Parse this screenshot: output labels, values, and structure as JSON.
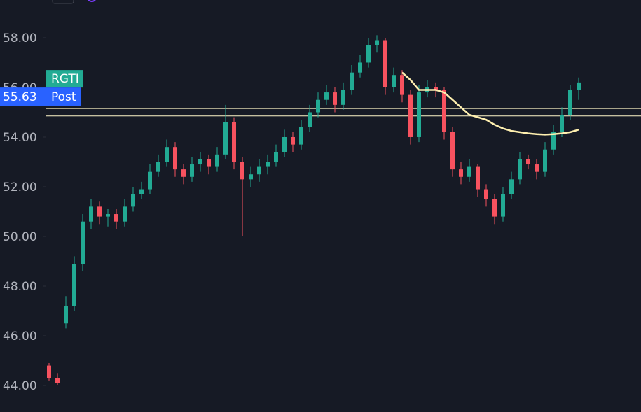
{
  "chart_data": {
    "type": "candlestick",
    "symbol": "RGTI",
    "last_price": 55.63,
    "session_label": "Post",
    "ylim": [
      42.93,
      59.52
    ],
    "yticks": [
      {
        "value": 44,
        "label": "44.00"
      },
      {
        "value": 46,
        "label": "46.00"
      },
      {
        "value": 48,
        "label": "48.00"
      },
      {
        "value": 50,
        "label": "50.00"
      },
      {
        "value": 52,
        "label": "52.00"
      },
      {
        "value": 54,
        "label": "54.00"
      },
      {
        "value": 56,
        "label": "56.00"
      },
      {
        "value": 58,
        "label": "58.00"
      }
    ],
    "up_color": "#22ab94",
    "down_color": "#f7525f",
    "hlines": [
      55.15,
      54.85
    ],
    "hline_color": "#fff6c8",
    "candles": {
      "open": [
        44.8,
        44.3,
        46.5,
        47.2,
        48.9,
        50.6,
        51.2,
        50.8,
        50.9,
        50.6,
        51.2,
        51.7,
        51.9,
        52.6,
        53.0,
        53.6,
        52.7,
        52.4,
        52.9,
        53.1,
        52.8,
        53.3,
        54.6,
        53.0,
        52.3,
        52.5,
        52.8,
        53.0,
        53.4,
        54.0,
        53.7,
        54.4,
        55.0,
        55.5,
        55.8,
        55.3,
        55.9,
        56.6,
        57.0,
        57.7,
        57.9,
        56.0,
        56.5,
        55.7,
        54.0,
        55.8,
        56.0,
        55.9,
        54.2,
        52.7,
        52.4,
        52.8,
        51.9,
        51.5,
        50.8,
        51.7,
        52.3,
        53.1,
        52.9,
        52.6,
        53.5,
        54.2,
        54.9,
        55.9
      ],
      "high": [
        44.9,
        44.5,
        47.6,
        49.2,
        50.9,
        51.5,
        51.4,
        51.1,
        51.1,
        51.5,
        52.0,
        52.2,
        52.9,
        53.3,
        53.9,
        53.8,
        52.9,
        53.2,
        53.4,
        53.3,
        53.6,
        55.3,
        54.8,
        53.2,
        52.8,
        53.1,
        53.3,
        53.7,
        54.3,
        54.2,
        54.7,
        55.3,
        55.8,
        56.1,
        56.0,
        56.2,
        56.9,
        57.3,
        58.0,
        58.1,
        58.0,
        56.8,
        56.7,
        55.9,
        56.1,
        56.3,
        56.2,
        56.0,
        54.4,
        53.0,
        53.1,
        52.9,
        52.1,
        51.7,
        52.0,
        52.6,
        53.4,
        53.3,
        53.1,
        53.8,
        54.5,
        55.2,
        56.1,
        56.4
      ],
      "low": [
        44.2,
        44.0,
        46.3,
        47.0,
        48.6,
        50.3,
        50.5,
        50.4,
        50.3,
        50.4,
        51.0,
        51.5,
        51.7,
        52.4,
        52.8,
        52.4,
        52.1,
        52.2,
        52.6,
        52.5,
        52.6,
        53.1,
        52.7,
        50.0,
        52.0,
        52.2,
        52.5,
        52.8,
        53.2,
        53.4,
        53.5,
        54.2,
        54.8,
        55.3,
        55.0,
        55.1,
        55.7,
        56.4,
        56.8,
        57.4,
        55.7,
        55.8,
        55.4,
        53.7,
        53.8,
        55.6,
        55.6,
        53.9,
        52.4,
        52.1,
        52.2,
        51.6,
        51.2,
        50.5,
        50.6,
        51.5,
        52.1,
        52.7,
        52.3,
        52.4,
        53.3,
        54.0,
        54.7,
        55.5
      ],
      "close": [
        44.3,
        44.1,
        47.2,
        48.9,
        50.6,
        51.2,
        50.8,
        50.9,
        50.6,
        51.2,
        51.7,
        51.9,
        52.6,
        53.0,
        53.6,
        52.7,
        52.4,
        52.9,
        53.1,
        52.8,
        53.3,
        54.6,
        53.0,
        52.3,
        52.5,
        52.8,
        53.0,
        53.4,
        54.0,
        53.7,
        54.4,
        55.0,
        55.5,
        55.8,
        55.3,
        55.9,
        56.6,
        57.0,
        57.7,
        57.9,
        56.0,
        56.5,
        55.7,
        54.0,
        55.8,
        56.0,
        55.9,
        54.2,
        52.7,
        52.4,
        52.8,
        51.9,
        51.5,
        50.8,
        51.7,
        52.3,
        53.1,
        52.9,
        52.6,
        53.5,
        54.2,
        54.9,
        55.9,
        56.2
      ]
    },
    "overlay": {
      "color": "#fff0b0",
      "values": [
        null,
        null,
        null,
        null,
        null,
        null,
        null,
        null,
        null,
        null,
        null,
        null,
        null,
        null,
        null,
        null,
        null,
        null,
        null,
        null,
        null,
        null,
        null,
        null,
        null,
        null,
        null,
        null,
        null,
        null,
        null,
        null,
        null,
        null,
        null,
        null,
        null,
        null,
        null,
        null,
        null,
        null,
        56.6,
        56.3,
        55.9,
        55.9,
        55.9,
        55.8,
        55.5,
        55.2,
        54.9,
        54.8,
        54.7,
        54.5,
        54.35,
        54.25,
        54.2,
        54.15,
        54.12,
        54.1,
        54.12,
        54.15,
        54.2,
        54.3
      ]
    }
  }
}
